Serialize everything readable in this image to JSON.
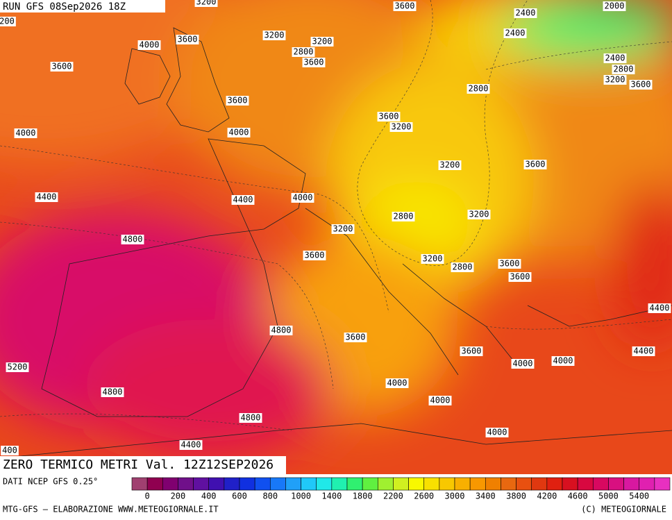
{
  "header": {
    "run": "RUN GFS 08Sep2026 18Z",
    "title": "ZERO TERMICO METRI Val. 12Z12SEP2026"
  },
  "contour_labels": [
    3200,
    3600,
    2400,
    2000,
    200,
    4000,
    3600,
    3200,
    3200,
    2800,
    3600,
    2400,
    2400,
    2800,
    3200,
    3600,
    3600,
    2800,
    3600,
    3600,
    3200,
    4000,
    4000,
    3200,
    3600,
    4400,
    4400,
    4000,
    2800,
    3200,
    3200,
    4800,
    3600,
    3200,
    2800,
    3600,
    3600,
    4400,
    4800,
    3600,
    3600,
    4000,
    4000,
    4400,
    5200,
    4000,
    4800,
    4000,
    4800,
    4400,
    4000,
    400
  ],
  "colorbar": {
    "colors": [
      "#a04070",
      "#900050",
      "#800070",
      "#70108a",
      "#6010a0",
      "#4010b0",
      "#2020c8",
      "#1030e0",
      "#1050f0",
      "#1878f8",
      "#20a0f8",
      "#20c8f8",
      "#20e8e8",
      "#20f0b0",
      "#30f070",
      "#60f040",
      "#a0f030",
      "#d0f020",
      "#f8f800",
      "#f8e000",
      "#f8c800",
      "#f8b000",
      "#f89800",
      "#f08000",
      "#e86810",
      "#e85010",
      "#e03810",
      "#e02010",
      "#d81020",
      "#d80840",
      "#d80860",
      "#d81080",
      "#d818a0",
      "#e020b0",
      "#e830c0"
    ],
    "ticks": [
      0,
      200,
      400,
      600,
      800,
      1000,
      1400,
      1800,
      2200,
      2600,
      3000,
      3400,
      3800,
      4200,
      4600,
      5000,
      5400
    ]
  },
  "footer": {
    "source": "DATI NCEP GFS 0.25°",
    "credit": "MTG-GFS — ELABORAZIONE WWW.METEOGIORNALE.IT",
    "copyright": "(C) METEOGIORNALE"
  }
}
